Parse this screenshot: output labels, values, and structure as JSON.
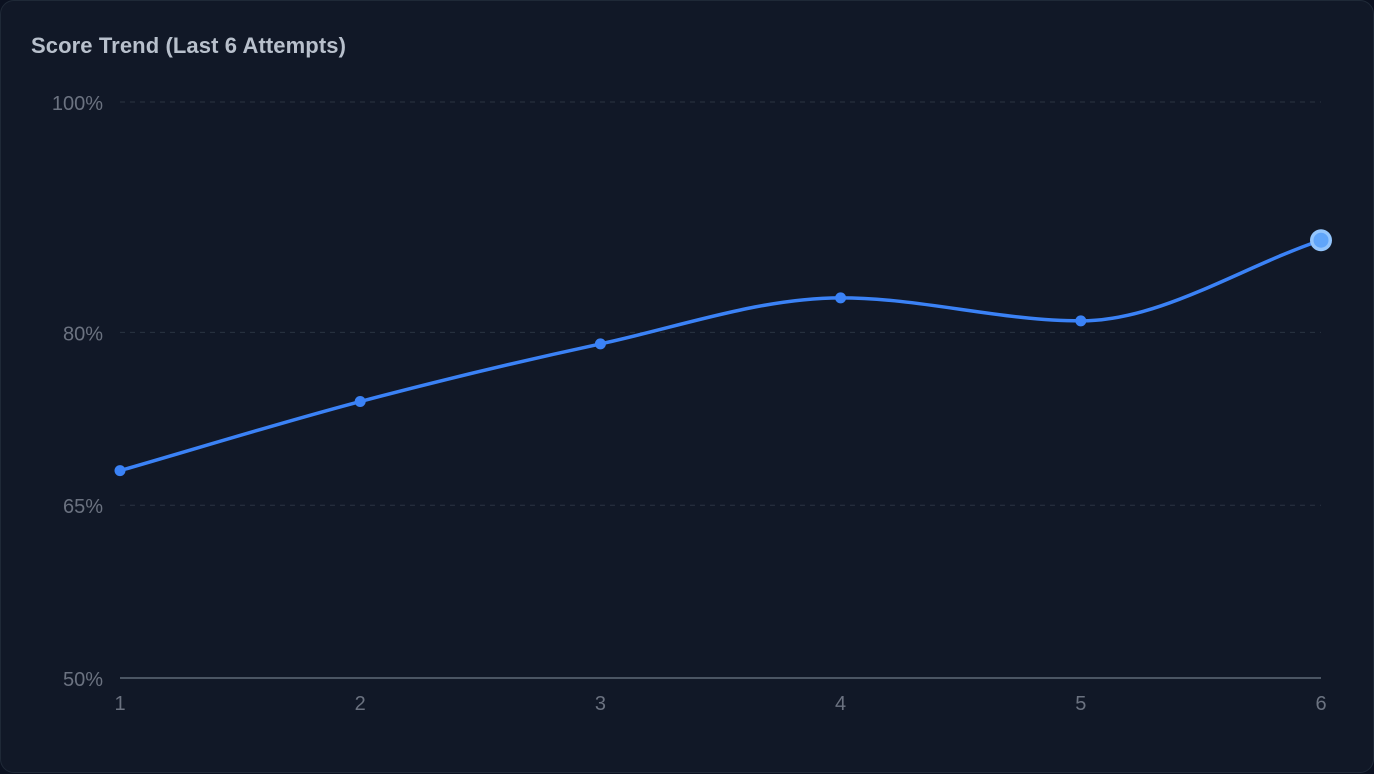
{
  "title": "Score Trend (Last 6 Attempts)",
  "colors": {
    "background": "#111827",
    "line": "#3b82f6",
    "highlight_point": "#60a5fa",
    "grid": "#2a3342",
    "axis": "#4b5563",
    "tick_text": "#6b7280"
  },
  "chart_data": {
    "type": "line",
    "title": "Score Trend (Last 6 Attempts)",
    "xlabel": "",
    "ylabel": "",
    "categories": [
      "1",
      "2",
      "3",
      "4",
      "5",
      "6"
    ],
    "series": [
      {
        "name": "Score",
        "values": [
          68,
          74,
          79,
          83,
          81,
          88
        ]
      }
    ],
    "ylim": [
      50,
      100
    ],
    "yticks": [
      "100%",
      "80%",
      "65%",
      "50%"
    ],
    "ytick_values": [
      100,
      80,
      65,
      50
    ],
    "grid": true,
    "curve": "smooth",
    "highlighted_point": 6,
    "legend": "none"
  }
}
